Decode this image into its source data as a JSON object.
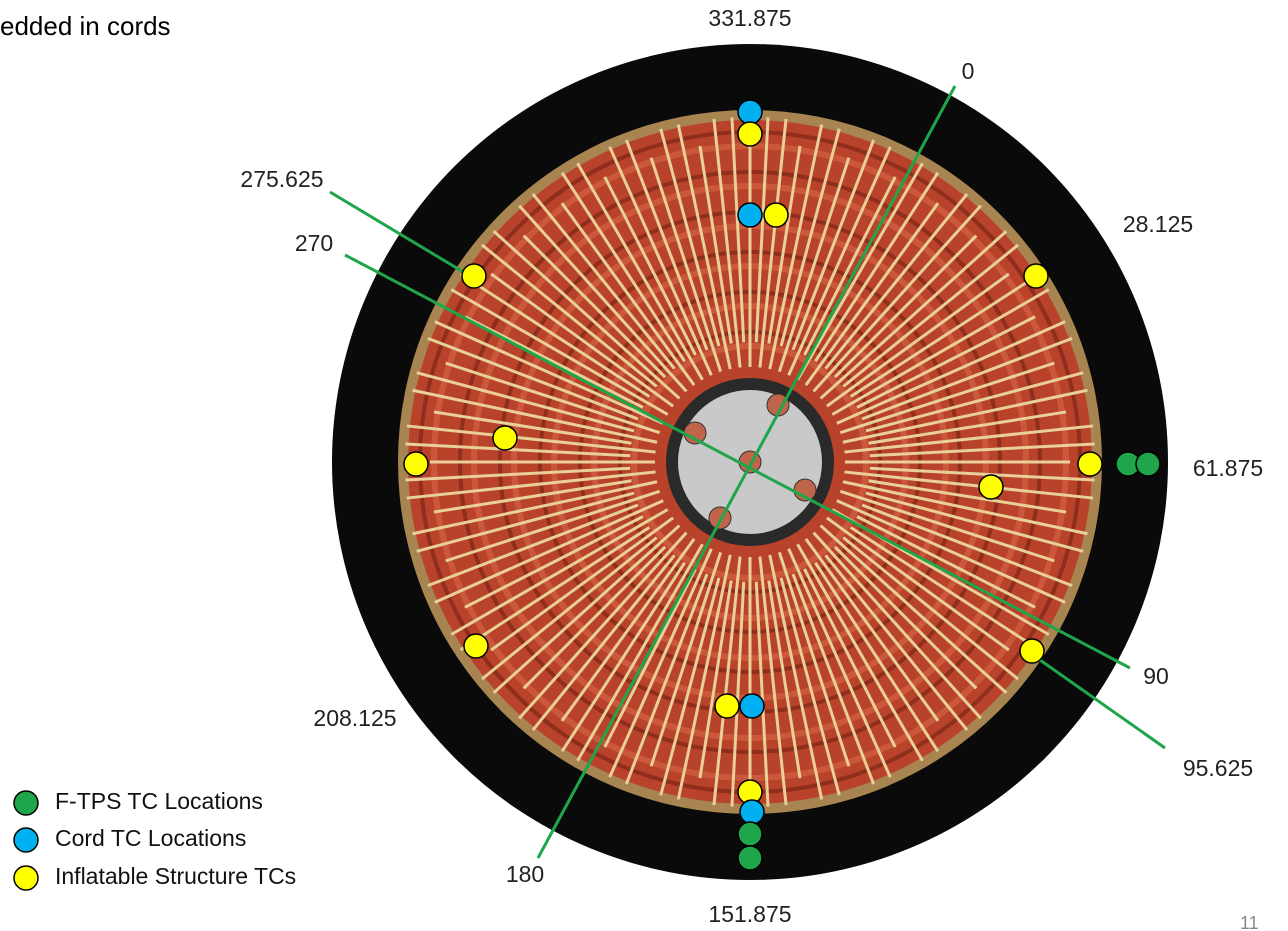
{
  "header": {
    "text": "edded in cords"
  },
  "angle_labels": [
    "331.875",
    "0",
    "275.625",
    "28.125",
    "270",
    "61.875",
    "90",
    "95.625",
    "208.125",
    "180",
    "151.875"
  ],
  "legend": [
    "F-TPS TC Locations",
    "Cord TC Locations",
    "Inflatable Structure TCs"
  ],
  "page_number": "11"
}
